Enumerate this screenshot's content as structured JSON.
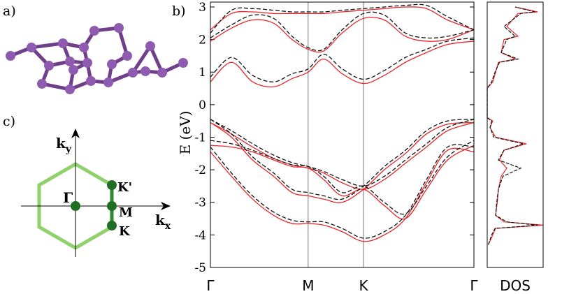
{
  "panels": {
    "a": "a)",
    "b": "b)",
    "c": "c)",
    "bz": {
      "ky": {
        "base": "k",
        "sub": "y"
      },
      "kx": {
        "base": "k",
        "sub": "x"
      },
      "gamma": "Γ",
      "kprime": "K'",
      "m": "M",
      "k": "K"
    }
  },
  "chart_data": [
    {
      "type": "line",
      "ylabel": "E (eV)",
      "x": [
        0,
        0.08,
        0.16,
        0.24,
        0.31,
        0.371,
        0.43,
        0.5,
        0.581,
        0.66,
        0.74,
        0.82,
        0.9,
        1
      ],
      "xlim": [
        0,
        1
      ],
      "xticks": [
        {
          "value": 0,
          "label": "Γ"
        },
        {
          "value": 0.371,
          "label": "M"
        },
        {
          "value": 0.581,
          "label": "K"
        },
        {
          "value": 1,
          "label": "Γ"
        }
      ],
      "ylim": [
        -5,
        3.15
      ],
      "yticks": [
        -5,
        -4,
        -3,
        -2,
        -1,
        0,
        1,
        2,
        3
      ],
      "series": [
        {
          "color": "#e8262a",
          "style": "solid",
          "values": [
            0.7,
            1.3,
            0.7,
            0.55,
            0.8,
            1.0,
            1.4,
            0.95,
            0.65,
            0.9,
            1.3,
            1.6,
            1.85,
            1.95
          ]
        },
        {
          "color": "#e8262a",
          "style": "solid",
          "values": [
            1.95,
            2.35,
            2.6,
            2.5,
            2.0,
            1.7,
            1.65,
            2.2,
            2.65,
            2.6,
            2.1,
            1.95,
            2.0,
            2.3
          ]
        },
        {
          "color": "#e8262a",
          "style": "solid",
          "values": [
            2.3,
            2.8,
            2.85,
            2.8,
            2.8,
            2.8,
            2.8,
            2.85,
            2.9,
            2.95,
            3.0,
            2.95,
            2.6,
            2.3
          ]
        },
        {
          "color": "#e8262a",
          "style": "solid",
          "values": [
            -0.55,
            -0.9,
            -1.3,
            -1.65,
            -1.85,
            -1.95,
            -2.1,
            -2.4,
            -2.6,
            -2.3,
            -1.8,
            -1.3,
            -0.8,
            -0.55
          ]
        },
        {
          "color": "#e8262a",
          "style": "solid",
          "values": [
            -1.25,
            -1.3,
            -1.45,
            -1.7,
            -1.9,
            -1.95,
            -2.3,
            -2.8,
            -2.6,
            -3.1,
            -3.5,
            -2.6,
            -1.7,
            -1.25
          ]
        },
        {
          "color": "#e8262a",
          "style": "solid",
          "values": [
            -1.45,
            -2.2,
            -2.9,
            -3.4,
            -3.65,
            -3.65,
            -3.7,
            -3.9,
            -4.2,
            -4.0,
            -3.5,
            -2.4,
            -1.4,
            -1.45
          ]
        },
        {
          "color": "#e8262a",
          "style": "solid",
          "values": [
            -0.55,
            -1.0,
            -1.7,
            -2.2,
            -2.7,
            -2.8,
            -2.9,
            -3.0,
            -2.6,
            -2.0,
            -1.5,
            -0.9,
            -0.6,
            -0.55
          ]
        },
        {
          "color": "#111111",
          "style": "dashed",
          "values": [
            0.85,
            1.45,
            0.9,
            0.7,
            0.95,
            1.1,
            1.55,
            1.1,
            0.78,
            1.05,
            1.45,
            1.7,
            1.95,
            2.05
          ]
        },
        {
          "color": "#111111",
          "style": "dashed",
          "values": [
            2.05,
            2.45,
            2.75,
            2.65,
            2.1,
            1.75,
            1.7,
            2.3,
            2.8,
            2.75,
            2.2,
            2.05,
            2.1,
            2.3
          ]
        },
        {
          "color": "#111111",
          "style": "dashed",
          "values": [
            2.2,
            2.9,
            2.95,
            2.9,
            2.85,
            2.85,
            2.85,
            2.9,
            2.95,
            3.0,
            3.05,
            3.05,
            2.7,
            2.3
          ]
        },
        {
          "color": "#111111",
          "style": "dashed",
          "values": [
            -0.45,
            -0.8,
            -1.2,
            -1.55,
            -1.78,
            -1.9,
            -2.05,
            -2.3,
            -2.5,
            -2.2,
            -1.7,
            -1.2,
            -0.7,
            -0.45
          ]
        },
        {
          "color": "#111111",
          "style": "dashed",
          "values": [
            -1.1,
            -1.2,
            -1.4,
            -1.65,
            -1.85,
            -1.9,
            -2.2,
            -2.7,
            -2.5,
            -3.0,
            -3.35,
            -2.5,
            -1.6,
            -1.1
          ]
        },
        {
          "color": "#111111",
          "style": "dashed",
          "values": [
            -1.3,
            -2.1,
            -2.8,
            -3.3,
            -3.55,
            -3.6,
            -3.6,
            -3.8,
            -4.1,
            -3.9,
            -3.4,
            -2.3,
            -1.3,
            -1.3
          ]
        },
        {
          "color": "#111111",
          "style": "dashed",
          "values": [
            -0.45,
            -0.9,
            -1.6,
            -2.1,
            -2.6,
            -2.7,
            -2.8,
            -2.9,
            -2.5,
            -1.9,
            -1.4,
            -0.8,
            -0.5,
            -0.45
          ]
        }
      ]
    },
    {
      "type": "dos",
      "xlabel": "DOS",
      "xlim": [
        0,
        1
      ],
      "energies": [
        -4.3,
        -4.0,
        -3.8,
        -3.7,
        -3.6,
        -3.4,
        -3.0,
        -2.6,
        -2.2,
        -1.95,
        -1.7,
        -1.4,
        -1.2,
        -1.0,
        -0.7,
        -0.5,
        -0.4,
        0.5,
        0.7,
        1.0,
        1.3,
        1.4,
        1.6,
        2.0,
        2.1,
        2.4,
        2.8,
        2.85,
        3.0
      ],
      "series": [
        {
          "color": "#e8262a",
          "values": [
            0.02,
            0.1,
            0.15,
            1.0,
            0.3,
            0.15,
            0.18,
            0.2,
            0.25,
            0.35,
            0.22,
            0.3,
            0.7,
            0.15,
            0.05,
            0.1,
            0,
            0,
            0.1,
            0.15,
            0.2,
            0.5,
            0.25,
            0.3,
            0.55,
            0.35,
            0.55,
            0.9,
            0.5
          ]
        },
        {
          "color": "#111111",
          "values": [
            0.02,
            0.08,
            0.14,
            0.9,
            0.35,
            0.15,
            0.17,
            0.2,
            0.28,
            0.6,
            0.2,
            0.3,
            0.65,
            0.12,
            0.05,
            0.08,
            0,
            0,
            0.08,
            0.14,
            0.22,
            0.55,
            0.25,
            0.35,
            0.5,
            0.3,
            0.6,
            0.85,
            0.5
          ]
        }
      ]
    }
  ]
}
